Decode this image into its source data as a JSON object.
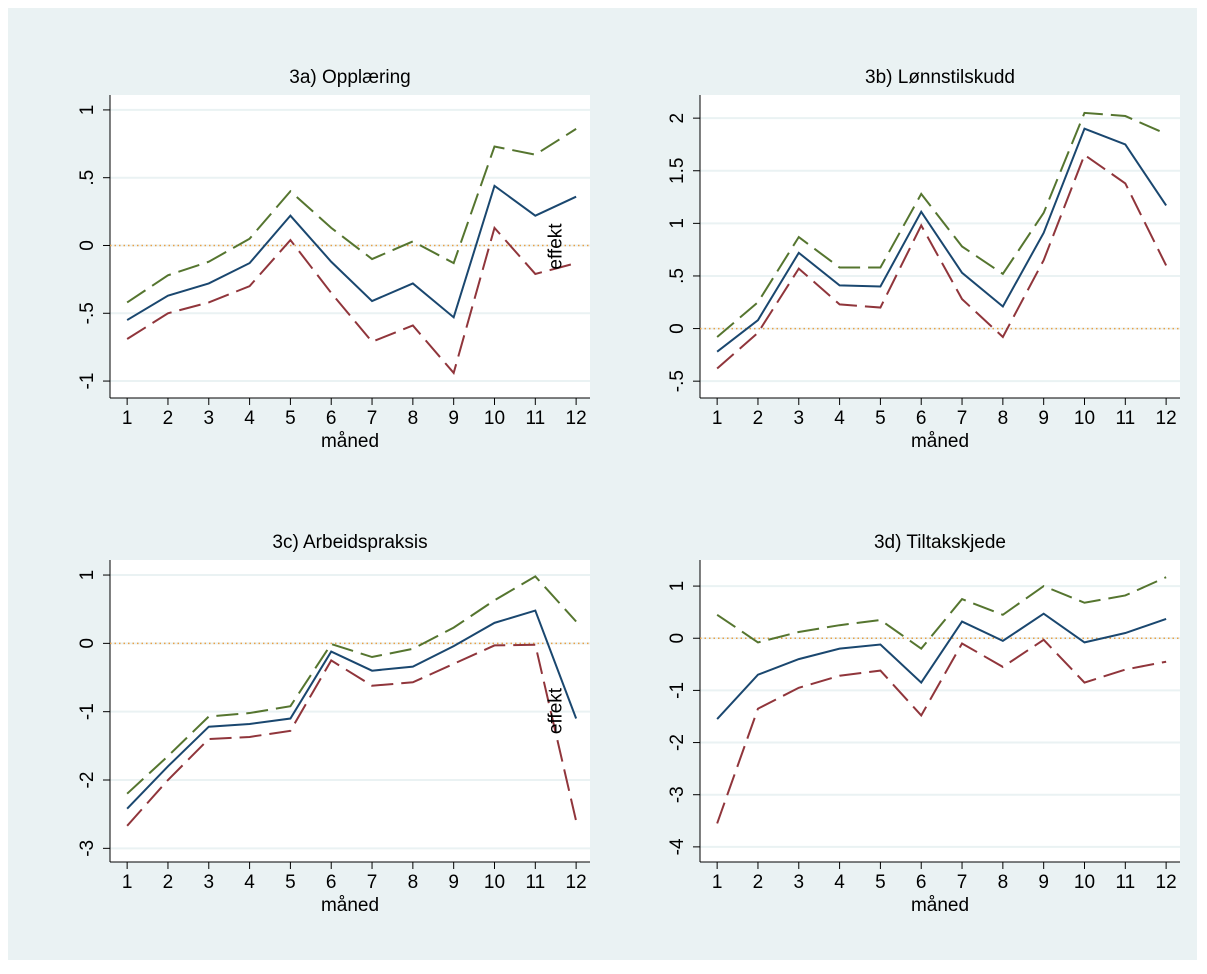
{
  "chart_data": [
    {
      "type": "line",
      "title": "3a) Opplæring",
      "xlabel": "måned",
      "annotation": "effekt",
      "x": [
        1,
        2,
        3,
        4,
        5,
        6,
        7,
        8,
        9,
        10,
        11,
        12
      ],
      "xlim": [
        0.58,
        12.34
      ],
      "xticks": [
        1,
        2,
        3,
        4,
        5,
        6,
        7,
        8,
        9,
        10,
        11,
        12
      ],
      "ylim": [
        -1.125,
        1.11
      ],
      "yticks": [
        -1,
        {
          "value": -0.5,
          "label": "-.5"
        },
        0,
        {
          "value": 0.5,
          "label": ".5"
        },
        1
      ],
      "grid": true,
      "refline": {
        "value": 0,
        "color": "#e8a046"
      },
      "series": [
        {
          "color": "#1a476f",
          "dash": "solid",
          "values": [
            -0.55,
            -0.37,
            -0.28,
            -0.13,
            0.22,
            -0.12,
            -0.41,
            -0.28,
            -0.53,
            0.44,
            0.22,
            0.36
          ]
        },
        {
          "color": "#55752f",
          "dash": "dashed",
          "values": [
            -0.42,
            -0.22,
            -0.12,
            0.05,
            0.4,
            0.13,
            -0.1,
            0.03,
            -0.13,
            0.73,
            0.67,
            0.86
          ]
        },
        {
          "color": "#90353b",
          "dash": "dashed",
          "values": [
            -0.69,
            -0.5,
            -0.42,
            -0.3,
            0.04,
            -0.35,
            -0.71,
            -0.59,
            -0.94,
            0.13,
            -0.21,
            -0.13
          ]
        }
      ]
    },
    {
      "type": "line",
      "title": "3b) Lønnstilskudd",
      "xlabel": "måned",
      "x": [
        1,
        2,
        3,
        4,
        5,
        6,
        7,
        8,
        9,
        10,
        11,
        12
      ],
      "xlim": [
        0.58,
        12.34
      ],
      "xticks": [
        1,
        2,
        3,
        4,
        5,
        6,
        7,
        8,
        9,
        10,
        11,
        12
      ],
      "ylim": [
        -0.66,
        2.22
      ],
      "yticks": [
        {
          "value": -0.5,
          "label": "-.5"
        },
        0,
        {
          "value": 0.5,
          "label": ".5"
        },
        1,
        1.5,
        2
      ],
      "grid": true,
      "refline": {
        "value": 0,
        "color": "#e8a046"
      },
      "series": [
        {
          "color": "#1a476f",
          "dash": "solid",
          "values": [
            -0.22,
            0.08,
            0.72,
            0.41,
            0.4,
            1.11,
            0.53,
            0.21,
            0.91,
            1.9,
            1.75,
            1.17
          ]
        },
        {
          "color": "#55752f",
          "dash": "dashed",
          "values": [
            -0.08,
            0.25,
            0.87,
            0.58,
            0.58,
            1.28,
            0.78,
            0.52,
            1.1,
            2.05,
            2.02,
            1.85
          ]
        },
        {
          "color": "#90353b",
          "dash": "dashed",
          "values": [
            -0.38,
            -0.04,
            0.57,
            0.23,
            0.2,
            0.98,
            0.28,
            -0.08,
            0.65,
            1.65,
            1.38,
            0.6
          ]
        }
      ]
    },
    {
      "type": "line",
      "title": "3c) Arbeidspraksis",
      "xlabel": "måned",
      "annotation": "effekt",
      "x": [
        1,
        2,
        3,
        4,
        5,
        6,
        7,
        8,
        9,
        10,
        11,
        12
      ],
      "xlim": [
        0.58,
        12.34
      ],
      "xticks": [
        1,
        2,
        3,
        4,
        5,
        6,
        7,
        8,
        9,
        10,
        11,
        12
      ],
      "ylim": [
        -3.2,
        1.22
      ],
      "yticks": [
        -3,
        -2,
        -1,
        0,
        1
      ],
      "grid": true,
      "refline": {
        "value": 0,
        "color": "#e8a046"
      },
      "series": [
        {
          "color": "#1a476f",
          "dash": "solid",
          "values": [
            -2.42,
            -1.8,
            -1.22,
            -1.18,
            -1.1,
            -0.12,
            -0.4,
            -0.34,
            -0.04,
            0.3,
            0.48,
            -1.1
          ]
        },
        {
          "color": "#55752f",
          "dash": "dashed",
          "values": [
            -2.2,
            -1.65,
            -1.07,
            -1.02,
            -0.92,
            -0.01,
            -0.2,
            -0.08,
            0.23,
            0.63,
            0.98,
            0.32
          ]
        },
        {
          "color": "#90353b",
          "dash": "dashed",
          "values": [
            -2.67,
            -2.0,
            -1.4,
            -1.37,
            -1.28,
            -0.25,
            -0.62,
            -0.57,
            -0.3,
            -0.03,
            -0.02,
            -2.6
          ]
        }
      ]
    },
    {
      "type": "line",
      "title": "3d) Tiltakskjede",
      "xlabel": "måned",
      "x": [
        1,
        2,
        3,
        4,
        5,
        6,
        7,
        8,
        9,
        10,
        11,
        12
      ],
      "xlim": [
        0.58,
        12.34
      ],
      "xticks": [
        1,
        2,
        3,
        4,
        5,
        6,
        7,
        8,
        9,
        10,
        11,
        12
      ],
      "ylim": [
        -4.29,
        1.5
      ],
      "yticks": [
        -4,
        -3,
        -2,
        -1,
        0,
        1
      ],
      "grid": true,
      "refline": {
        "value": 0,
        "color": "#e8a046"
      },
      "series": [
        {
          "color": "#1a476f",
          "dash": "solid",
          "values": [
            -1.55,
            -0.7,
            -0.4,
            -0.2,
            -0.12,
            -0.85,
            0.32,
            -0.05,
            0.47,
            -0.08,
            0.1,
            0.37
          ]
        },
        {
          "color": "#55752f",
          "dash": "dashed",
          "values": [
            0.45,
            -0.08,
            0.12,
            0.25,
            0.35,
            -0.2,
            0.75,
            0.45,
            1.0,
            0.68,
            0.82,
            1.17
          ]
        },
        {
          "color": "#90353b",
          "dash": "dashed",
          "values": [
            -3.55,
            -1.35,
            -0.95,
            -0.72,
            -0.62,
            -1.48,
            -0.1,
            -0.55,
            -0.03,
            -0.85,
            -0.6,
            -0.45
          ]
        }
      ]
    }
  ]
}
